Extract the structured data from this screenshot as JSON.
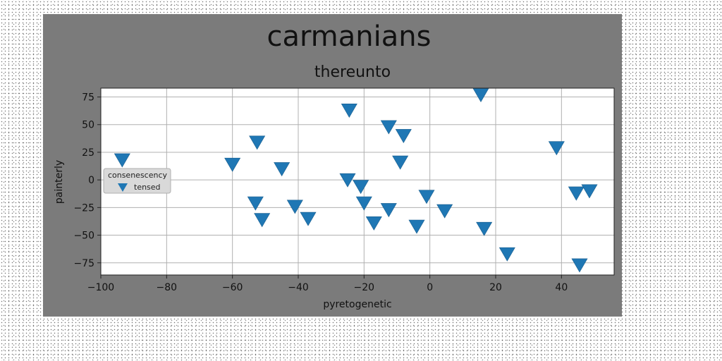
{
  "chart_data": {
    "type": "scatter",
    "title": "carmanians",
    "subtitle": "thereunto",
    "xlabel": "pyretogenetic",
    "ylabel": "painterly",
    "xlim": [
      -100,
      56
    ],
    "ylim": [
      -86,
      83
    ],
    "xticks": [
      -100,
      -80,
      -60,
      -40,
      -20,
      0,
      20,
      40
    ],
    "yticks": [
      75,
      50,
      25,
      0,
      -25,
      -50,
      -75
    ],
    "grid": true,
    "legend": {
      "title": "consenescency",
      "placement": "center-left"
    },
    "marker": "triangle-down",
    "series": [
      {
        "name": "tensed",
        "color": "#1f77b4",
        "x": [
          -93.5,
          -60,
          -52.5,
          -53,
          -51,
          -45,
          -41,
          -37,
          -24.5,
          -25,
          -21,
          -20,
          -17,
          -12.5,
          -12.5,
          -9,
          -8,
          -4,
          -1,
          4.5,
          15.5,
          16.5,
          23.5,
          38.5,
          44.5,
          48.5,
          45.5
        ],
        "y": [
          18,
          14,
          34,
          -21,
          -36,
          10,
          -24,
          -35,
          63,
          0,
          -6,
          -21,
          -39,
          48,
          -27,
          16,
          40,
          -42,
          -15,
          -28,
          77,
          -44,
          -67,
          29,
          -12,
          -10,
          -77
        ]
      }
    ]
  }
}
